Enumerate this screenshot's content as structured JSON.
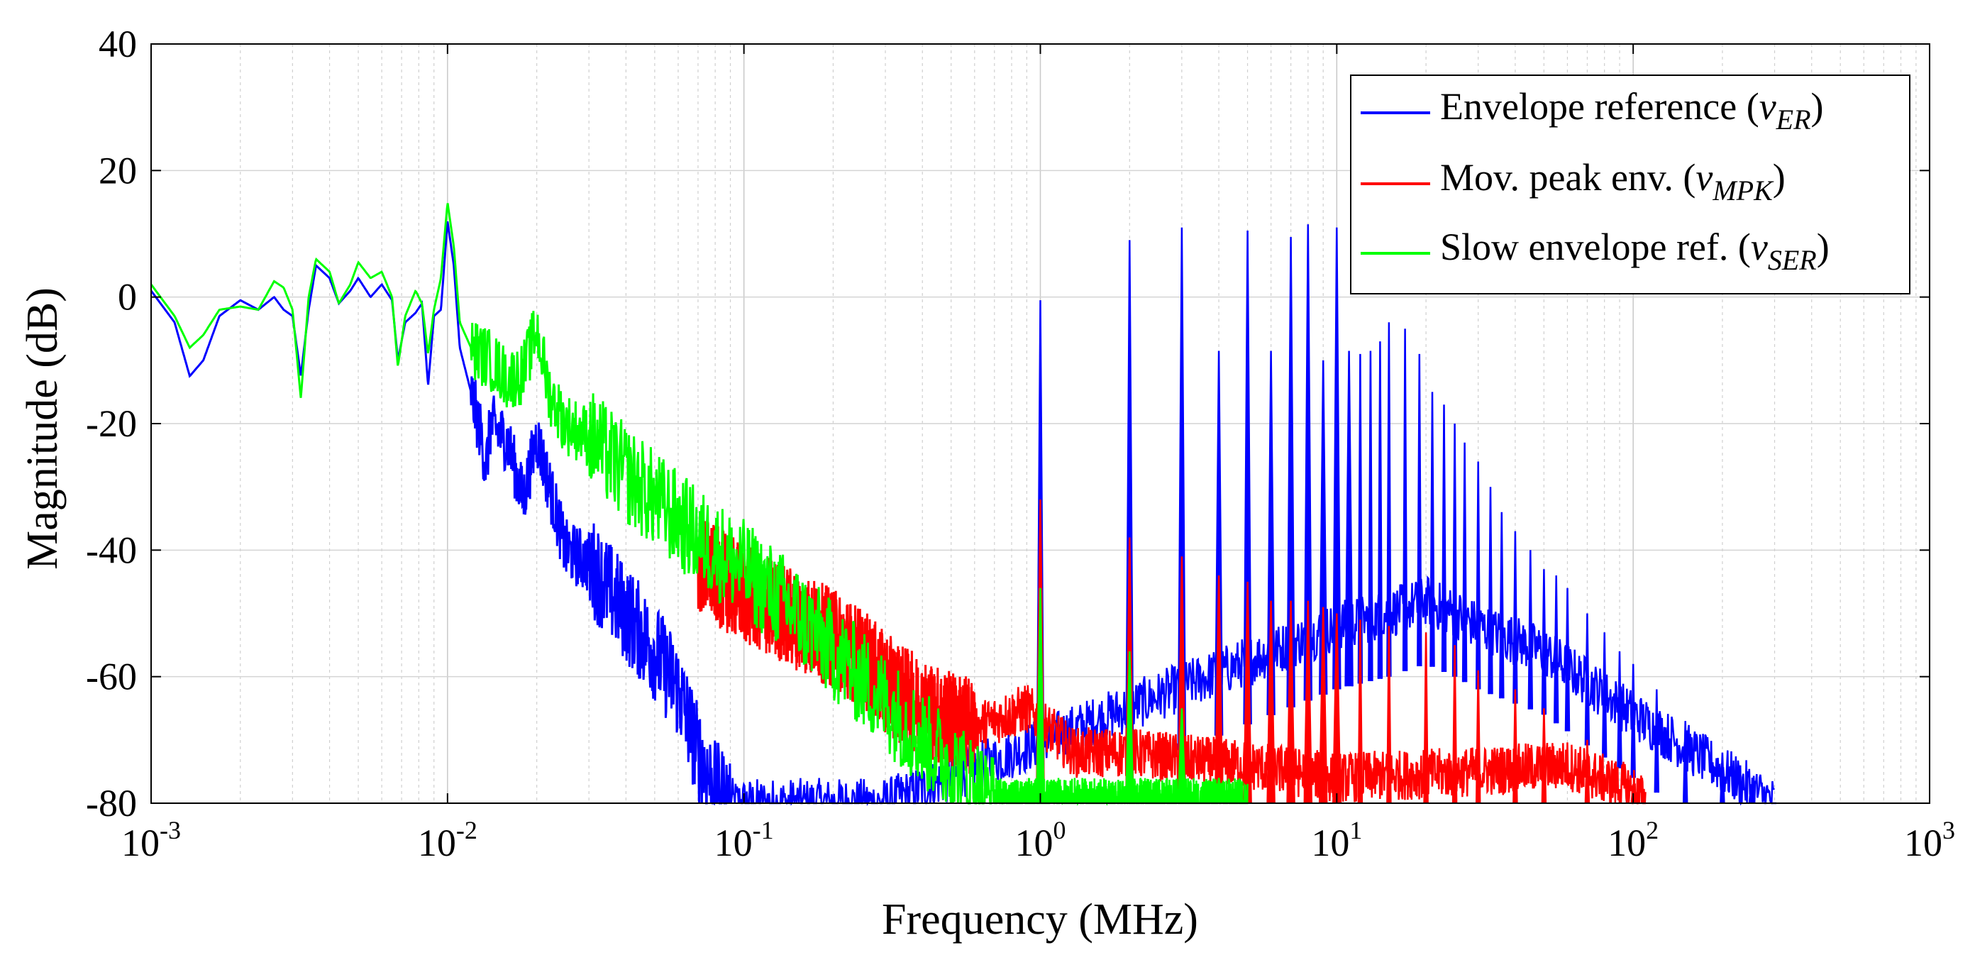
{
  "chart_data": {
    "type": "line",
    "title": "",
    "xlabel": "Frequency (MHz)",
    "ylabel": "Magnitude (dB)",
    "xscale": "log",
    "xlim": [
      0.001,
      1000
    ],
    "ylim": [
      -80,
      40
    ],
    "grid": true,
    "legend_position": "top-right",
    "y_ticks": [
      "40",
      "20",
      "0",
      "-20",
      "-40",
      "-60",
      "-80"
    ],
    "x_ticks": [
      {
        "base": "10",
        "exp": "-3"
      },
      {
        "base": "10",
        "exp": "-2"
      },
      {
        "base": "10",
        "exp": "-1"
      },
      {
        "base": "10",
        "exp": "0"
      },
      {
        "base": "10",
        "exp": "1"
      },
      {
        "base": "10",
        "exp": "2"
      },
      {
        "base": "10",
        "exp": "3"
      }
    ],
    "series": [
      {
        "name": "Envelope reference",
        "symbol": "v",
        "subscript": "ER",
        "color": "#0000ff",
        "low_freq_curve": [
          [
            0.001,
            1
          ],
          [
            0.0012,
            -4
          ],
          [
            0.00135,
            -12.5
          ],
          [
            0.0015,
            -10
          ],
          [
            0.0017,
            -3
          ],
          [
            0.002,
            -0.5
          ],
          [
            0.0023,
            -2
          ],
          [
            0.0026,
            0
          ],
          [
            0.0028,
            -2
          ],
          [
            0.003,
            -3
          ],
          [
            0.0032,
            -12.5
          ],
          [
            0.0034,
            -2
          ],
          [
            0.0036,
            5
          ],
          [
            0.004,
            3
          ],
          [
            0.0043,
            -1
          ],
          [
            0.0047,
            1
          ],
          [
            0.005,
            3
          ],
          [
            0.0055,
            0
          ],
          [
            0.006,
            2
          ],
          [
            0.0065,
            -0.5
          ],
          [
            0.0068,
            -10
          ],
          [
            0.0072,
            -4
          ],
          [
            0.0078,
            -2.5
          ],
          [
            0.0082,
            -1
          ],
          [
            0.0086,
            -14
          ],
          [
            0.009,
            -3
          ],
          [
            0.0095,
            -2
          ],
          [
            0.01,
            12
          ],
          [
            0.0105,
            5
          ],
          [
            0.011,
            -8
          ],
          [
            0.012,
            -15
          ],
          [
            0.013,
            -22
          ],
          [
            0.0135,
            -27
          ],
          [
            0.014,
            -20
          ],
          [
            0.016,
            -23
          ],
          [
            0.018,
            -32
          ],
          [
            0.02,
            -22
          ],
          [
            0.025,
            -40
          ],
          [
            0.03,
            -42
          ],
          [
            0.04,
            -50
          ],
          [
            0.05,
            -56
          ],
          [
            0.06,
            -62
          ],
          [
            0.07,
            -72
          ],
          [
            0.08,
            -78
          ],
          [
            0.09,
            -80
          ]
        ],
        "peaks": [
          [
            1,
            -0.5
          ],
          [
            2,
            9
          ],
          [
            3,
            11
          ],
          [
            4,
            -8.5
          ],
          [
            5,
            10.5
          ],
          [
            6,
            -8.5
          ],
          [
            7,
            9.5
          ],
          [
            8,
            11.5
          ],
          [
            9,
            -10
          ],
          [
            10,
            11
          ],
          [
            11,
            -8.5
          ],
          [
            12,
            -9
          ],
          [
            13,
            -8.5
          ],
          [
            14,
            -7
          ],
          [
            15,
            -4
          ],
          [
            17,
            -5
          ],
          [
            19,
            -9
          ],
          [
            21,
            -15
          ],
          [
            23,
            -17
          ],
          [
            25,
            -20
          ],
          [
            27,
            -23
          ],
          [
            30,
            -26
          ],
          [
            33,
            -30
          ],
          [
            36,
            -34
          ],
          [
            40,
            -37
          ],
          [
            45,
            -40
          ],
          [
            50,
            -43
          ],
          [
            55,
            -44
          ],
          [
            60,
            -46
          ],
          [
            70,
            -50
          ],
          [
            80,
            -53
          ],
          [
            90,
            -56
          ],
          [
            100,
            -58
          ],
          [
            120,
            -62
          ],
          [
            150,
            -67
          ],
          [
            200,
            -72
          ],
          [
            250,
            -77
          ],
          [
            300,
            -80
          ]
        ],
        "floor": [
          [
            0.09,
            -80
          ],
          [
            0.3,
            -80
          ],
          [
            10,
            -52
          ],
          [
            15,
            -50
          ],
          [
            20,
            -48
          ],
          [
            25,
            -50
          ],
          [
            30,
            -52
          ],
          [
            50,
            -56
          ],
          [
            100,
            -66
          ],
          [
            300,
            -80
          ]
        ]
      },
      {
        "name": "Mov. peak env.",
        "symbol": "v",
        "subscript": "MPK",
        "color": "#ff0000",
        "low_freq_curve": [
          [
            0.07,
            -42
          ],
          [
            0.1,
            -47
          ],
          [
            0.15,
            -51
          ],
          [
            0.2,
            -54
          ],
          [
            0.25,
            -57
          ],
          [
            0.3,
            -61
          ],
          [
            0.4,
            -65
          ],
          [
            0.5,
            -67
          ],
          [
            0.6,
            -68
          ]
        ],
        "peaks": [
          [
            1,
            -32
          ],
          [
            2,
            -38
          ],
          [
            3,
            -41
          ],
          [
            4,
            -44
          ],
          [
            5,
            -45
          ],
          [
            6,
            -48
          ],
          [
            7,
            -48
          ],
          [
            8,
            -48
          ],
          [
            9,
            -49
          ],
          [
            10,
            -50
          ],
          [
            12,
            -51
          ],
          [
            15,
            -52
          ],
          [
            20,
            -53
          ],
          [
            25,
            -55
          ],
          [
            30,
            -59
          ],
          [
            40,
            -62
          ],
          [
            50,
            -65
          ],
          [
            70,
            -70
          ],
          [
            100,
            -77
          ]
        ],
        "floor": [
          [
            0.6,
            -68
          ],
          [
            0.9,
            -65
          ],
          [
            1.3,
            -72
          ],
          [
            2,
            -72
          ],
          [
            3,
            -73
          ],
          [
            5,
            -74
          ],
          [
            10,
            -76
          ],
          [
            30,
            -75
          ],
          [
            60,
            -74
          ],
          [
            100,
            -78
          ],
          [
            110,
            -80
          ]
        ]
      },
      {
        "name": "Slow envelope ref.",
        "symbol": "v",
        "subscript": "SER",
        "color": "#00ff00",
        "low_freq_curve": [
          [
            0.001,
            2
          ],
          [
            0.0012,
            -3
          ],
          [
            0.00135,
            -8
          ],
          [
            0.0015,
            -6
          ],
          [
            0.0017,
            -2
          ],
          [
            0.002,
            -1.5
          ],
          [
            0.0023,
            -2
          ],
          [
            0.0026,
            2.5
          ],
          [
            0.0028,
            1.5
          ],
          [
            0.003,
            -2
          ],
          [
            0.0032,
            -16
          ],
          [
            0.0034,
            0
          ],
          [
            0.0036,
            6
          ],
          [
            0.004,
            4
          ],
          [
            0.0043,
            -1
          ],
          [
            0.0047,
            2
          ],
          [
            0.005,
            5.5
          ],
          [
            0.0055,
            3
          ],
          [
            0.006,
            4
          ],
          [
            0.0065,
            0
          ],
          [
            0.0068,
            -11
          ],
          [
            0.0072,
            -3
          ],
          [
            0.0078,
            1
          ],
          [
            0.0082,
            -1
          ],
          [
            0.0086,
            -9
          ],
          [
            0.009,
            -2
          ],
          [
            0.0095,
            3
          ],
          [
            0.01,
            15
          ],
          [
            0.0105,
            8
          ],
          [
            0.011,
            -4
          ],
          [
            0.012,
            -8
          ],
          [
            0.014,
            -10
          ],
          [
            0.016,
            -13
          ],
          [
            0.018,
            -12
          ],
          [
            0.02,
            -5
          ],
          [
            0.022,
            -15
          ],
          [
            0.025,
            -20
          ],
          [
            0.03,
            -22
          ],
          [
            0.04,
            -28
          ],
          [
            0.05,
            -32
          ],
          [
            0.07,
            -38
          ],
          [
            0.1,
            -43
          ],
          [
            0.15,
            -50
          ],
          [
            0.2,
            -56
          ],
          [
            0.3,
            -64
          ],
          [
            0.4,
            -70
          ],
          [
            0.5,
            -74
          ],
          [
            0.6,
            -77
          ],
          [
            0.7,
            -80
          ]
        ],
        "peaks": [
          [
            1,
            -46
          ],
          [
            2,
            -56
          ],
          [
            3,
            -65
          ],
          [
            4,
            -76
          ]
        ],
        "floor": [
          [
            0.7,
            -80
          ],
          [
            1,
            -80
          ],
          [
            2,
            -80
          ],
          [
            5,
            -80
          ]
        ]
      }
    ]
  }
}
